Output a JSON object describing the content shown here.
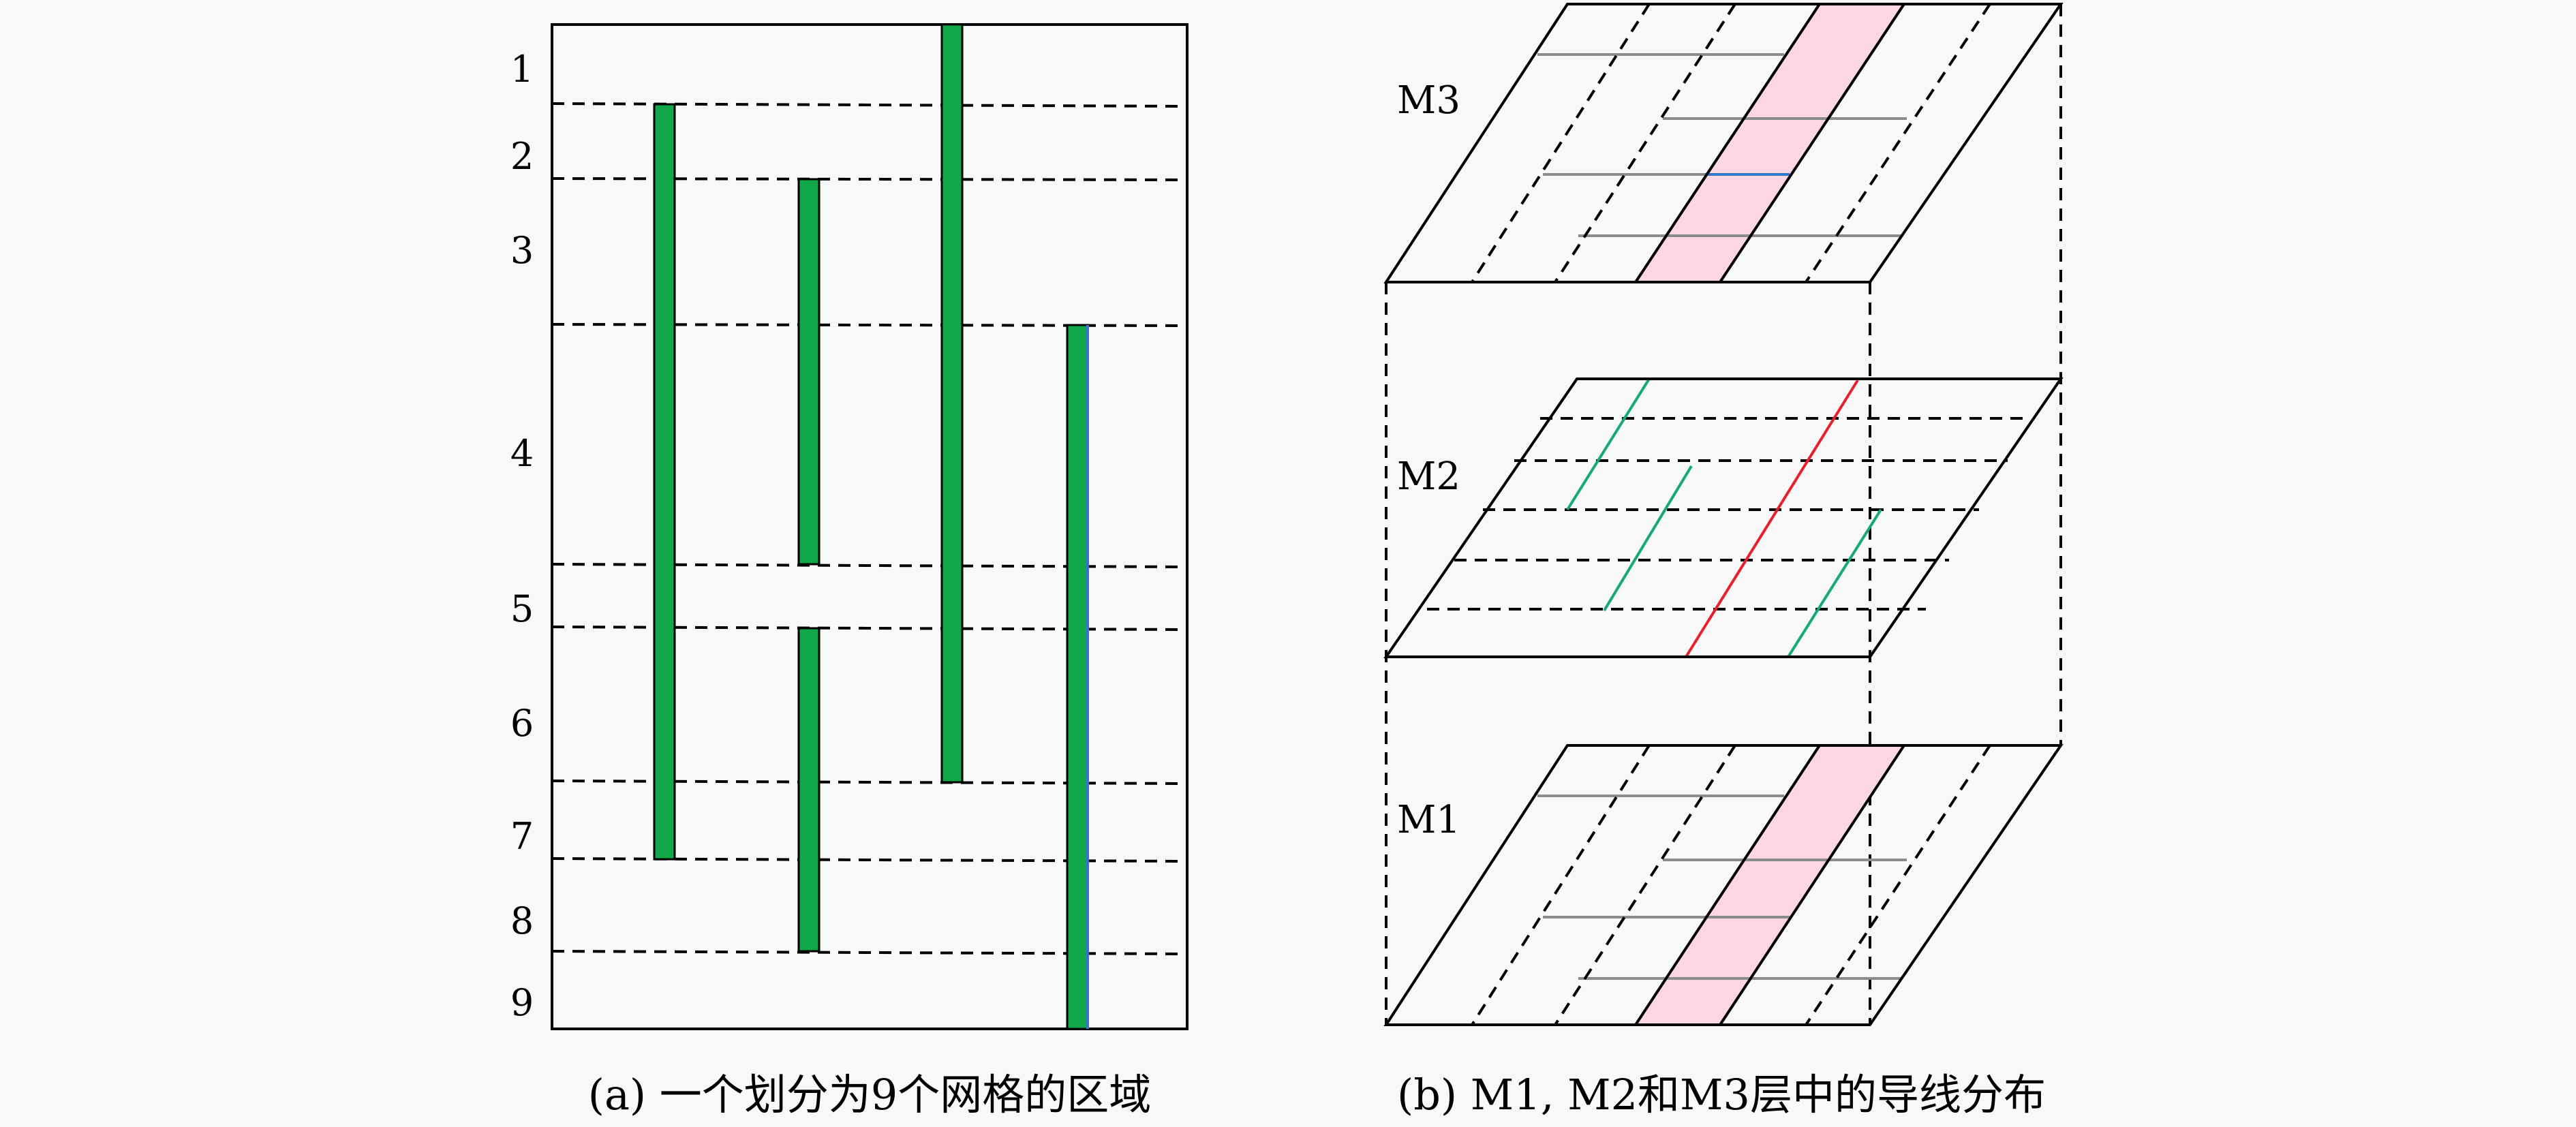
{
  "panel_a": {
    "row_labels": [
      "1",
      "2",
      "3",
      "4",
      "5",
      "6",
      "7",
      "8",
      "9"
    ],
    "caption": "(a) 一个划分为9个网格的区域",
    "wire_color": "#12a84a"
  },
  "panel_b": {
    "layers": [
      {
        "label": "M3"
      },
      {
        "label": "M2"
      },
      {
        "label": "M1"
      }
    ],
    "caption": "(b) M1, M2和M3层中的导线分布",
    "colors": {
      "highlight": "#fcd6e0",
      "teal_wire": "#16a878",
      "red_wire": "#e8202a",
      "blue_wire": "#3377cc",
      "grey_wire": "#8c8c8c"
    }
  }
}
